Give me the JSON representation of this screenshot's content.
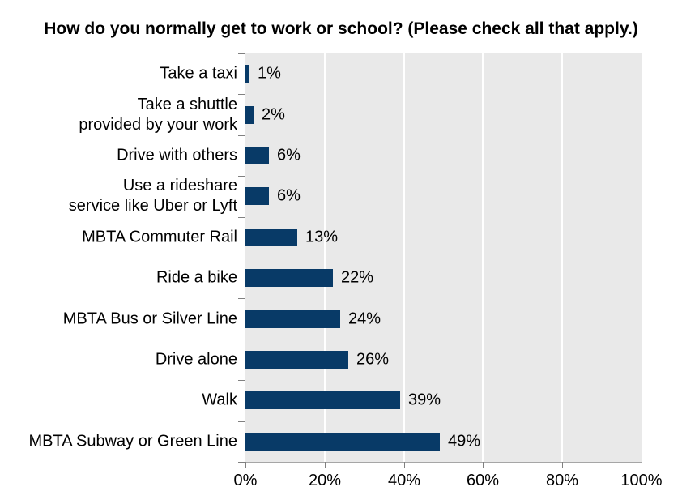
{
  "title": "How do you normally get to work or school? (Please check all that apply.)",
  "chart_data": {
    "type": "bar",
    "orientation": "horizontal",
    "title": "How do you normally get to work or school? (Please check all that apply.)",
    "categories": [
      "Take a taxi",
      "Take a shuttle provided by your work",
      "Drive with others",
      "Use a rideshare service like Uber or Lyft",
      "MBTA Commuter Rail",
      "Ride a bike",
      "MBTA Bus or Silver Line",
      "Drive alone",
      "Walk",
      "MBTA Subway or Green Line"
    ],
    "category_lines": [
      [
        "Take a taxi"
      ],
      [
        "Take a shuttle",
        "provided by your work"
      ],
      [
        "Drive with others"
      ],
      [
        "Use a rideshare",
        "service like Uber or Lyft"
      ],
      [
        "MBTA Commuter Rail"
      ],
      [
        "Ride a bike"
      ],
      [
        "MBTA Bus or Silver Line"
      ],
      [
        "Drive alone"
      ],
      [
        "Walk"
      ],
      [
        "MBTA Subway or Green Line"
      ]
    ],
    "values": [
      1,
      2,
      6,
      6,
      13,
      22,
      24,
      26,
      39,
      49
    ],
    "data_labels": [
      "1%",
      "2%",
      "6%",
      "6%",
      "13%",
      "22%",
      "24%",
      "26%",
      "39%",
      "49%"
    ],
    "xlim": [
      0,
      100
    ],
    "x_tick_values": [
      0,
      20,
      40,
      60,
      80,
      100
    ],
    "x_tick_labels": [
      "0%",
      "20%",
      "40%",
      "60%",
      "80%",
      "100%"
    ],
    "gridline_values": [
      20,
      40,
      60,
      80
    ],
    "grid": true,
    "legend": false,
    "colors": {
      "bar": "#083A67",
      "plot_background": "#E9E9E9",
      "gridline": "#FFFFFF",
      "category_axis": "#808080",
      "value_axis": "#A6A6A6",
      "tick": "#808080",
      "text": "#000000",
      "background": "#FFFFFF"
    }
  }
}
